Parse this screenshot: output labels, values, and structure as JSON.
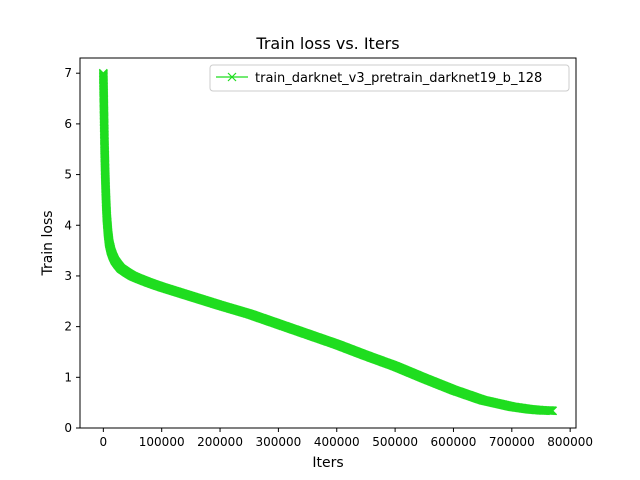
{
  "chart_data": {
    "type": "line",
    "title": "Train loss  vs. Iters",
    "xlabel": "Iters",
    "ylabel": "Train loss",
    "xlim": [
      -40000,
      810000
    ],
    "ylim": [
      0,
      7.3
    ],
    "xticks": [
      0,
      100000,
      200000,
      300000,
      400000,
      500000,
      600000,
      700000,
      800000
    ],
    "yticks": [
      0,
      1,
      2,
      3,
      4,
      5,
      6,
      7
    ],
    "legend": "top-right",
    "grid": false,
    "series": [
      {
        "name": "train_darknet_v3_pretrain_darknet19_b_128",
        "color": "#1fdd1f",
        "marker": "x",
        "x": [
          0,
          1000,
          2000,
          3000,
          4000,
          5000,
          6000,
          8000,
          10000,
          13000,
          16000,
          20000,
          25000,
          30000,
          40000,
          50000,
          60000,
          80000,
          100000,
          150000,
          200000,
          250000,
          300000,
          350000,
          400000,
          450000,
          500000,
          550000,
          600000,
          650000,
          700000,
          730000,
          750000,
          770000
        ],
        "y": [
          7.0,
          6.3,
          5.6,
          5.1,
          4.7,
          4.4,
          4.15,
          3.85,
          3.65,
          3.5,
          3.4,
          3.3,
          3.22,
          3.15,
          3.07,
          3.0,
          2.95,
          2.86,
          2.78,
          2.6,
          2.42,
          2.25,
          2.05,
          1.85,
          1.65,
          1.43,
          1.22,
          0.98,
          0.75,
          0.55,
          0.42,
          0.37,
          0.35,
          0.34
        ]
      }
    ]
  }
}
